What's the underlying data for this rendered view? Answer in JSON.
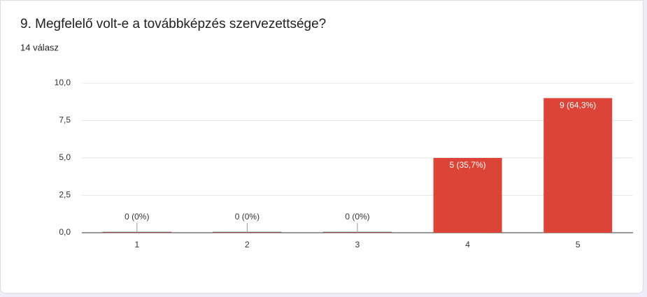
{
  "chart_data": {
    "type": "bar",
    "title": "9. Megfelelő volt-e a továbbképzés szervezettsége?",
    "subtitle": "14 válasz",
    "categories": [
      "1",
      "2",
      "3",
      "4",
      "5"
    ],
    "values": [
      0,
      0,
      0,
      5,
      9
    ],
    "value_labels": [
      "0 (0%)",
      "0 (0%)",
      "0 (0%)",
      "5 (35,7%)",
      "9 (64,3%)"
    ],
    "color": "#db4437",
    "ylim": [
      0,
      10
    ],
    "yticks": [
      {
        "value": 0,
        "label": "0,0"
      },
      {
        "value": 2.5,
        "label": "2,5"
      },
      {
        "value": 5,
        "label": "5,0"
      },
      {
        "value": 7.5,
        "label": "7,5"
      },
      {
        "value": 10,
        "label": "10,0"
      }
    ],
    "grid": true
  }
}
